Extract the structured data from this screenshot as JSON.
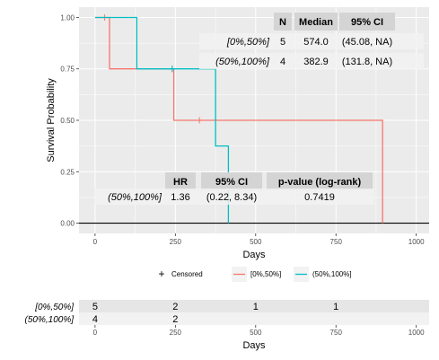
{
  "chart_data": {
    "type": "line",
    "xlabel": "Days",
    "ylabel": "Survival Probability",
    "xlim": [
      -50,
      1040
    ],
    "ylim": [
      -0.05,
      1.05
    ],
    "x_ticks": [
      0,
      250,
      500,
      750,
      1000
    ],
    "x_tick_labels": [
      "0",
      "250",
      "500",
      "750",
      "1000"
    ],
    "y_ticks": [
      0,
      0.25,
      0.5,
      0.75,
      1
    ],
    "y_tick_labels": [
      "0.00",
      "0.25",
      "0.50",
      "0.75",
      "1.00"
    ],
    "grid": true,
    "legend_position": "bottom",
    "series": [
      {
        "name": "[0%,50%]",
        "color": "#F8766D",
        "steps": [
          [
            0,
            1.0
          ],
          [
            45,
            1.0
          ],
          [
            45,
            0.75
          ],
          [
            245,
            0.75
          ],
          [
            245,
            0.5
          ],
          [
            895,
            0.5
          ],
          [
            895,
            0.0
          ]
        ],
        "censored": [
          [
            30,
            1.0
          ],
          [
            240,
            0.75
          ],
          [
            325,
            0.5
          ]
        ]
      },
      {
        "name": "(50%,100%]",
        "color": "#00BFC4",
        "steps": [
          [
            0,
            1.0
          ],
          [
            130,
            1.0
          ],
          [
            130,
            0.75
          ],
          [
            375,
            0.75
          ],
          [
            375,
            0.375
          ],
          [
            415,
            0.375
          ],
          [
            415,
            0.0
          ]
        ],
        "censored": [
          [
            240,
            0.75
          ]
        ]
      }
    ],
    "median_table": {
      "headers": [
        "N",
        "Median",
        "95% CI"
      ],
      "rows": [
        {
          "label": "[0%,50%]",
          "n": "5",
          "median": "574.0",
          "ci": "(45.08, NA)"
        },
        {
          "label": "(50%,100%]",
          "n": "4",
          "median": "382.9",
          "ci": "(131.8, NA)"
        }
      ]
    },
    "hr_table": {
      "headers": [
        "HR",
        "95% CI",
        "p-value (log-rank)"
      ],
      "row": {
        "label": "(50%,100%]",
        "hr": "1.36",
        "ci": "(0.22, 8.34)",
        "p": "0.7419"
      }
    },
    "legend": {
      "censored_label": "Censored",
      "censored_symbol": "+"
    },
    "risk_table": {
      "time_points": [
        0,
        250,
        500,
        750,
        1000
      ],
      "rows": [
        {
          "label": "[0%,50%]",
          "values": [
            "5",
            "2",
            "1",
            "1",
            ""
          ]
        },
        {
          "label": "(50%,100%]",
          "values": [
            "4",
            "2",
            "",
            "",
            ""
          ]
        }
      ],
      "xlabel": "Days"
    }
  }
}
